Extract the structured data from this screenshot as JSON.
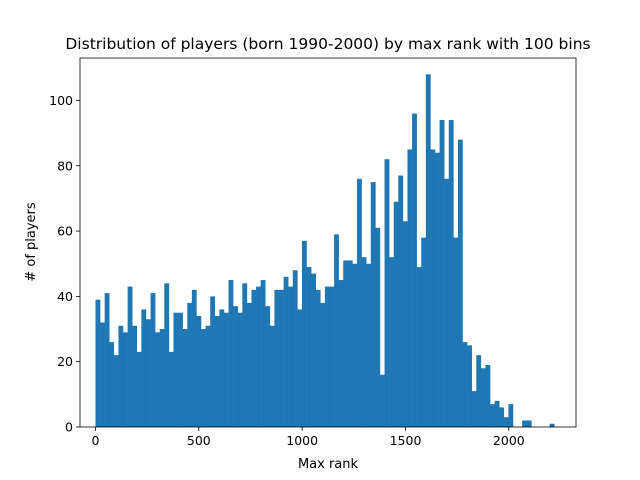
{
  "chart_data": {
    "type": "bar",
    "title": "Distribution of players (born 1990-2000) by max rank with 100 bins",
    "xlabel": "Max rank",
    "ylabel": "# of players",
    "xlim": [
      -75,
      2325
    ],
    "ylim": [
      0,
      113
    ],
    "xticks": [
      0,
      500,
      1000,
      1500,
      2000
    ],
    "yticks": [
      0,
      20,
      40,
      60,
      80,
      100
    ],
    "grid": false,
    "bin_start": 0,
    "bin_width": 22.2,
    "bar_color": "#1f77b4",
    "values": [
      39,
      32,
      41,
      26,
      22,
      31,
      29,
      43,
      31,
      23,
      36,
      33,
      41,
      29,
      30,
      44,
      23,
      35,
      35,
      30,
      38,
      42,
      34,
      30,
      31,
      40,
      34,
      36,
      35,
      45,
      37,
      35,
      44,
      38,
      42,
      43,
      45,
      37,
      31,
      42,
      42,
      46,
      43,
      48,
      36,
      57,
      49,
      47,
      42,
      38,
      43,
      43,
      59,
      45,
      51,
      51,
      50,
      76,
      52,
      50,
      75,
      61,
      16,
      82,
      52,
      69,
      77,
      63,
      85,
      96,
      49,
      58,
      108,
      85,
      84,
      94,
      76,
      94,
      58,
      88,
      26,
      25,
      11,
      22,
      18,
      19,
      7,
      8,
      6,
      3,
      7,
      0,
      0,
      2,
      2,
      0,
      0,
      0,
      0,
      1
    ]
  }
}
